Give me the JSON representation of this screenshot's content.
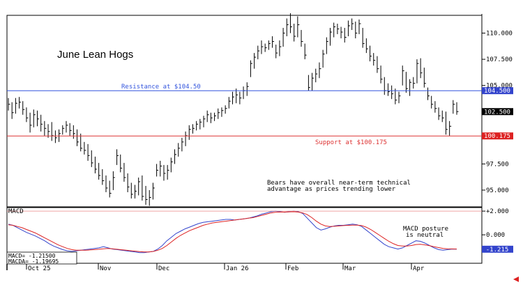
{
  "chart_data": [
    {
      "type": "ohlc",
      "title": "June Lean Hogs",
      "y_ticks": [
        "110.000",
        "107.500",
        "105.000",
        "102.500",
        "100.175",
        "97.500",
        "95.000"
      ],
      "ylim": [
        93.4,
        111.7
      ],
      "x_labels": [
        "Oct 25",
        "Nov",
        "Dec",
        "Jan 26",
        "Feb",
        "Mar",
        "Apr"
      ],
      "resistance": {
        "value": 104.5,
        "label": "Resistance at $104.50",
        "tag": "104.500",
        "color": "#3355dd"
      },
      "support": {
        "value": 100.175,
        "label": "Support at $100.175",
        "tag": "100.175",
        "color": "#dd3333"
      },
      "last_price": {
        "value": 102.5,
        "tag": "102.500"
      },
      "annotation": [
        "Bears have overall near-term technical",
        "advantage as prices trending lower"
      ],
      "bars": [
        {
          "h": 103.8,
          "l": 102.6,
          "c": 103.2
        },
        {
          "h": 103.4,
          "l": 101.8,
          "c": 102.4
        },
        {
          "h": 103.8,
          "l": 102.3,
          "c": 103.3
        },
        {
          "h": 103.9,
          "l": 102.8,
          "c": 103.4
        },
        {
          "h": 103.5,
          "l": 102.2,
          "c": 102.7
        },
        {
          "h": 102.9,
          "l": 101.5,
          "c": 101.9
        },
        {
          "h": 102.4,
          "l": 100.5,
          "c": 101.2
        },
        {
          "h": 102.7,
          "l": 101.0,
          "c": 102.2
        },
        {
          "h": 102.6,
          "l": 101.1,
          "c": 101.8
        },
        {
          "h": 102.2,
          "l": 100.6,
          "c": 101.3
        },
        {
          "h": 101.6,
          "l": 100.2,
          "c": 100.9
        },
        {
          "h": 101.3,
          "l": 100.0,
          "c": 100.6
        },
        {
          "h": 101.5,
          "l": 99.7,
          "c": 100.2
        },
        {
          "h": 100.7,
          "l": 99.5,
          "c": 100.0
        },
        {
          "h": 100.8,
          "l": 99.6,
          "c": 100.4
        },
        {
          "h": 101.2,
          "l": 100.3,
          "c": 100.9
        },
        {
          "h": 101.6,
          "l": 100.5,
          "c": 101.2
        },
        {
          "h": 101.4,
          "l": 100.2,
          "c": 100.7
        },
        {
          "h": 101.2,
          "l": 99.9,
          "c": 100.4
        },
        {
          "h": 100.8,
          "l": 99.2,
          "c": 99.6
        },
        {
          "h": 100.4,
          "l": 98.7,
          "c": 99.0
        },
        {
          "h": 99.6,
          "l": 98.4,
          "c": 98.8
        },
        {
          "h": 99.4,
          "l": 97.8,
          "c": 98.3
        },
        {
          "h": 98.8,
          "l": 97.2,
          "c": 97.6
        },
        {
          "h": 98.2,
          "l": 96.6,
          "c": 97.0
        },
        {
          "h": 97.6,
          "l": 96.0,
          "c": 96.4
        },
        {
          "h": 97.0,
          "l": 95.5,
          "c": 95.9
        },
        {
          "h": 96.4,
          "l": 94.8,
          "c": 95.2
        },
        {
          "h": 95.9,
          "l": 94.3,
          "c": 94.7
        },
        {
          "h": 96.8,
          "l": 95.0,
          "c": 96.2
        },
        {
          "h": 98.9,
          "l": 97.4,
          "c": 98.3
        },
        {
          "h": 98.4,
          "l": 96.7,
          "c": 97.1
        },
        {
          "h": 97.6,
          "l": 95.8,
          "c": 96.2
        },
        {
          "h": 96.6,
          "l": 94.8,
          "c": 95.3
        },
        {
          "h": 95.7,
          "l": 94.2,
          "c": 94.6
        },
        {
          "h": 95.5,
          "l": 94.2,
          "c": 94.9
        },
        {
          "h": 96.2,
          "l": 94.5,
          "c": 95.8
        },
        {
          "h": 96.4,
          "l": 94.0,
          "c": 94.4
        },
        {
          "h": 95.4,
          "l": 93.6,
          "c": 94.1
        },
        {
          "h": 95.0,
          "l": 93.5,
          "c": 94.3
        },
        {
          "h": 95.7,
          "l": 94.1,
          "c": 95.2
        },
        {
          "h": 97.5,
          "l": 96.3,
          "c": 96.9
        },
        {
          "h": 97.8,
          "l": 96.3,
          "c": 97.3
        },
        {
          "h": 97.4,
          "l": 95.9,
          "c": 96.6
        },
        {
          "h": 97.4,
          "l": 96.0,
          "c": 96.9
        },
        {
          "h": 98.1,
          "l": 96.7,
          "c": 97.7
        },
        {
          "h": 98.9,
          "l": 97.5,
          "c": 98.4
        },
        {
          "h": 99.5,
          "l": 98.2,
          "c": 99.0
        },
        {
          "h": 100.0,
          "l": 98.7,
          "c": 99.6
        },
        {
          "h": 100.6,
          "l": 99.2,
          "c": 100.2
        },
        {
          "h": 101.2,
          "l": 99.8,
          "c": 100.8
        },
        {
          "h": 101.3,
          "l": 100.4,
          "c": 100.9
        },
        {
          "h": 101.6,
          "l": 100.7,
          "c": 101.3
        },
        {
          "h": 101.8,
          "l": 100.8,
          "c": 101.5
        },
        {
          "h": 102.1,
          "l": 101.0,
          "c": 101.8
        },
        {
          "h": 102.6,
          "l": 101.5,
          "c": 102.2
        },
        {
          "h": 102.4,
          "l": 101.4,
          "c": 101.9
        },
        {
          "h": 102.4,
          "l": 101.6,
          "c": 102.1
        },
        {
          "h": 102.8,
          "l": 101.8,
          "c": 102.4
        },
        {
          "h": 102.9,
          "l": 102.0,
          "c": 102.6
        },
        {
          "h": 103.1,
          "l": 102.3,
          "c": 102.8
        },
        {
          "h": 103.9,
          "l": 102.8,
          "c": 103.5
        },
        {
          "h": 104.4,
          "l": 103.2,
          "c": 103.9
        },
        {
          "h": 104.7,
          "l": 103.3,
          "c": 104.1
        },
        {
          "h": 104.4,
          "l": 103.2,
          "c": 103.8
        },
        {
          "h": 104.9,
          "l": 103.7,
          "c": 104.5
        },
        {
          "h": 105.3,
          "l": 104.0,
          "c": 104.9
        },
        {
          "h": 107.4,
          "l": 105.8,
          "c": 107.1
        },
        {
          "h": 108.1,
          "l": 106.6,
          "c": 107.7
        },
        {
          "h": 108.8,
          "l": 107.5,
          "c": 108.3
        },
        {
          "h": 109.3,
          "l": 108.0,
          "c": 108.7
        },
        {
          "h": 109.0,
          "l": 108.2,
          "c": 108.6
        },
        {
          "h": 109.3,
          "l": 108.4,
          "c": 109.0
        },
        {
          "h": 109.7,
          "l": 108.6,
          "c": 109.2
        },
        {
          "h": 108.9,
          "l": 107.6,
          "c": 108.1
        },
        {
          "h": 109.3,
          "l": 107.8,
          "c": 108.7
        },
        {
          "h": 110.5,
          "l": 108.7,
          "c": 110.0
        },
        {
          "h": 111.4,
          "l": 109.7,
          "c": 110.8
        },
        {
          "h": 111.9,
          "l": 110.0,
          "c": 110.6
        },
        {
          "h": 110.9,
          "l": 109.2,
          "c": 109.7
        },
        {
          "h": 111.6,
          "l": 109.6,
          "c": 110.8
        },
        {
          "h": 110.3,
          "l": 108.7,
          "c": 109.2
        },
        {
          "h": 109.0,
          "l": 107.5,
          "c": 107.9
        },
        {
          "h": 106.0,
          "l": 104.5,
          "c": 104.8
        },
        {
          "h": 106.2,
          "l": 104.5,
          "c": 105.7
        },
        {
          "h": 106.6,
          "l": 105.3,
          "c": 106.1
        },
        {
          "h": 107.2,
          "l": 105.7,
          "c": 106.6
        },
        {
          "h": 108.4,
          "l": 106.7,
          "c": 108.0
        },
        {
          "h": 109.6,
          "l": 108.0,
          "c": 109.2
        },
        {
          "h": 110.5,
          "l": 108.8,
          "c": 110.1
        },
        {
          "h": 111.0,
          "l": 109.6,
          "c": 110.6
        },
        {
          "h": 110.9,
          "l": 109.9,
          "c": 110.4
        },
        {
          "h": 110.6,
          "l": 109.5,
          "c": 110.1
        },
        {
          "h": 110.5,
          "l": 109.1,
          "c": 109.6
        },
        {
          "h": 111.2,
          "l": 109.7,
          "c": 110.7
        },
        {
          "h": 111.4,
          "l": 110.3,
          "c": 110.9
        },
        {
          "h": 111.1,
          "l": 109.5,
          "c": 110.0
        },
        {
          "h": 111.3,
          "l": 109.9,
          "c": 110.9
        },
        {
          "h": 110.5,
          "l": 108.6,
          "c": 109.0
        },
        {
          "h": 109.5,
          "l": 108.1,
          "c": 108.5
        },
        {
          "h": 108.8,
          "l": 107.3,
          "c": 107.8
        },
        {
          "h": 108.1,
          "l": 106.9,
          "c": 107.4
        },
        {
          "h": 107.8,
          "l": 106.2,
          "c": 106.6
        },
        {
          "h": 106.9,
          "l": 105.2,
          "c": 105.6
        },
        {
          "h": 105.8,
          "l": 104.1,
          "c": 104.5
        },
        {
          "h": 105.2,
          "l": 104.0,
          "c": 104.4
        },
        {
          "h": 105.0,
          "l": 103.7,
          "c": 104.2
        },
        {
          "h": 104.7,
          "l": 103.2,
          "c": 103.6
        },
        {
          "h": 104.4,
          "l": 103.3,
          "c": 104.0
        },
        {
          "h": 106.9,
          "l": 105.0,
          "c": 106.4
        },
        {
          "h": 106.3,
          "l": 104.3,
          "c": 104.7
        },
        {
          "h": 105.6,
          "l": 104.0,
          "c": 105.3
        },
        {
          "h": 105.8,
          "l": 104.7,
          "c": 105.2
        },
        {
          "h": 107.5,
          "l": 105.2,
          "c": 107.1
        },
        {
          "h": 107.6,
          "l": 105.7,
          "c": 106.2
        },
        {
          "h": 106.7,
          "l": 104.8,
          "c": 105.2
        },
        {
          "h": 104.8,
          "l": 103.6,
          "c": 104.0
        },
        {
          "h": 104.0,
          "l": 102.8,
          "c": 103.2
        },
        {
          "h": 103.5,
          "l": 102.4,
          "c": 102.8
        },
        {
          "h": 102.9,
          "l": 101.7,
          "c": 102.1
        },
        {
          "h": 102.6,
          "l": 101.5,
          "c": 101.9
        },
        {
          "h": 102.5,
          "l": 100.3,
          "c": 100.8
        },
        {
          "h": 101.6,
          "l": 100.2,
          "c": 101.1
        },
        {
          "h": 103.6,
          "l": 102.3,
          "c": 103.2
        },
        {
          "h": 103.4,
          "l": 102.2,
          "c": 102.5
        }
      ]
    },
    {
      "type": "line",
      "title": "MACD",
      "y_ticks": [
        "+2.000",
        "0.000",
        "-1.215"
      ],
      "ylim": [
        -2.4,
        2.3
      ],
      "readout": {
        "macd": "MACD=   -1.21500",
        "macda": "MACDA= -1.19695"
      },
      "series": [
        {
          "name": "MACD",
          "color": "#3344cc",
          "values": [
            0.9,
            0.8,
            0.6,
            0.4,
            0.2,
            0.05,
            -0.1,
            -0.3,
            -0.5,
            -0.75,
            -0.95,
            -1.1,
            -1.25,
            -1.35,
            -1.4,
            -1.35,
            -1.3,
            -1.25,
            -1.2,
            -1.15,
            -1.1,
            -1.0,
            -1.1,
            -1.2,
            -1.25,
            -1.3,
            -1.35,
            -1.4,
            -1.45,
            -1.5,
            -1.5,
            -1.45,
            -1.4,
            -1.2,
            -0.9,
            -0.5,
            -0.2,
            0.1,
            0.3,
            0.5,
            0.65,
            0.8,
            0.95,
            1.05,
            1.1,
            1.15,
            1.2,
            1.25,
            1.3,
            1.3,
            1.25,
            1.3,
            1.35,
            1.4,
            1.5,
            1.6,
            1.75,
            1.85,
            1.95,
            2.0,
            1.95,
            1.9,
            1.95,
            2.0,
            1.95,
            1.8,
            1.4,
            1.0,
            0.6,
            0.4,
            0.5,
            0.65,
            0.75,
            0.8,
            0.8,
            0.85,
            0.9,
            0.85,
            0.7,
            0.4,
            0.1,
            -0.2,
            -0.5,
            -0.8,
            -1.0,
            -1.1,
            -1.2,
            -1.1,
            -0.9,
            -0.7,
            -0.5,
            -0.55,
            -0.7,
            -0.9,
            -1.1,
            -1.25,
            -1.3,
            -1.25,
            -1.2,
            -1.215
          ]
        },
        {
          "name": "MACDA",
          "color": "#dd2222",
          "values": [
            0.85,
            0.8,
            0.7,
            0.6,
            0.45,
            0.3,
            0.15,
            -0.05,
            -0.25,
            -0.45,
            -0.65,
            -0.85,
            -1.0,
            -1.15,
            -1.25,
            -1.3,
            -1.3,
            -1.3,
            -1.28,
            -1.25,
            -1.22,
            -1.18,
            -1.15,
            -1.18,
            -1.22,
            -1.26,
            -1.3,
            -1.34,
            -1.38,
            -1.42,
            -1.45,
            -1.45,
            -1.4,
            -1.3,
            -1.15,
            -0.9,
            -0.6,
            -0.3,
            -0.05,
            0.15,
            0.35,
            0.5,
            0.65,
            0.8,
            0.9,
            1.0,
            1.05,
            1.1,
            1.15,
            1.2,
            1.25,
            1.3,
            1.35,
            1.4,
            1.45,
            1.55,
            1.65,
            1.75,
            1.85,
            1.9,
            1.92,
            1.92,
            1.93,
            1.95,
            1.92,
            1.85,
            1.7,
            1.45,
            1.15,
            0.9,
            0.75,
            0.7,
            0.72,
            0.75,
            0.78,
            0.8,
            0.82,
            0.82,
            0.78,
            0.65,
            0.45,
            0.2,
            -0.05,
            -0.3,
            -0.55,
            -0.75,
            -0.9,
            -0.95,
            -0.95,
            -0.9,
            -0.82,
            -0.8,
            -0.85,
            -0.92,
            -1.0,
            -1.08,
            -1.15,
            -1.18,
            -1.19,
            -1.19695
          ]
        }
      ],
      "annotation": [
        "MACD posture",
        "is neutral"
      ]
    }
  ]
}
